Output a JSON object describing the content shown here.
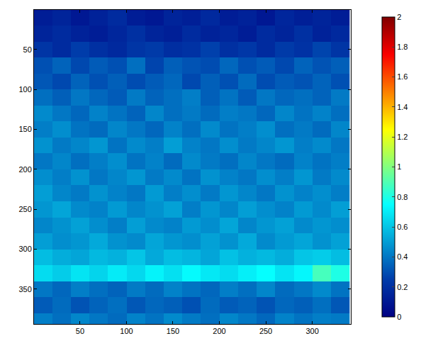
{
  "chart_data": {
    "type": "heatmap",
    "x": [
      10,
      30,
      50,
      70,
      90,
      110,
      130,
      150,
      170,
      190,
      210,
      230,
      250,
      270,
      290,
      310,
      330
    ],
    "y": [
      10,
      30,
      50,
      70,
      90,
      110,
      130,
      150,
      170,
      190,
      210,
      230,
      250,
      270,
      290,
      310,
      330,
      350,
      370,
      390
    ],
    "z": [
      [
        0.12,
        0.15,
        0.1,
        0.14,
        0.18,
        0.12,
        0.1,
        0.15,
        0.13,
        0.17,
        0.12,
        0.14,
        0.1,
        0.16,
        0.13,
        0.15,
        0.12
      ],
      [
        0.15,
        0.18,
        0.14,
        0.12,
        0.16,
        0.2,
        0.15,
        0.13,
        0.18,
        0.14,
        0.16,
        0.12,
        0.18,
        0.15,
        0.2,
        0.14,
        0.17
      ],
      [
        0.22,
        0.18,
        0.25,
        0.2,
        0.17,
        0.22,
        0.24,
        0.19,
        0.21,
        0.26,
        0.2,
        0.23,
        0.18,
        0.24,
        0.21,
        0.27,
        0.22
      ],
      [
        0.3,
        0.35,
        0.28,
        0.33,
        0.3,
        0.38,
        0.27,
        0.34,
        0.31,
        0.29,
        0.36,
        0.3,
        0.33,
        0.28,
        0.35,
        0.31,
        0.34
      ],
      [
        0.32,
        0.28,
        0.35,
        0.3,
        0.34,
        0.29,
        0.33,
        0.36,
        0.28,
        0.34,
        0.3,
        0.37,
        0.29,
        0.33,
        0.31,
        0.35,
        0.3
      ],
      [
        0.38,
        0.34,
        0.4,
        0.36,
        0.33,
        0.41,
        0.35,
        0.38,
        0.42,
        0.34,
        0.39,
        0.33,
        0.4,
        0.36,
        0.38,
        0.35,
        0.41
      ],
      [
        0.45,
        0.4,
        0.36,
        0.43,
        0.39,
        0.35,
        0.44,
        0.38,
        0.41,
        0.37,
        0.42,
        0.4,
        0.36,
        0.44,
        0.39,
        0.43,
        0.38
      ],
      [
        0.42,
        0.46,
        0.39,
        0.37,
        0.44,
        0.4,
        0.36,
        0.43,
        0.38,
        0.45,
        0.39,
        0.42,
        0.46,
        0.38,
        0.41,
        0.37,
        0.44
      ],
      [
        0.47,
        0.41,
        0.44,
        0.48,
        0.39,
        0.45,
        0.42,
        0.5,
        0.43,
        0.4,
        0.46,
        0.41,
        0.44,
        0.48,
        0.42,
        0.45,
        0.4
      ],
      [
        0.4,
        0.44,
        0.38,
        0.42,
        0.46,
        0.39,
        0.43,
        0.37,
        0.45,
        0.41,
        0.38,
        0.44,
        0.4,
        0.37,
        0.43,
        0.39,
        0.42
      ],
      [
        0.46,
        0.42,
        0.47,
        0.4,
        0.44,
        0.48,
        0.41,
        0.45,
        0.39,
        0.47,
        0.43,
        0.4,
        0.46,
        0.42,
        0.48,
        0.41,
        0.45
      ],
      [
        0.5,
        0.44,
        0.41,
        0.47,
        0.43,
        0.4,
        0.49,
        0.42,
        0.46,
        0.41,
        0.48,
        0.44,
        0.4,
        0.47,
        0.43,
        0.46,
        0.42
      ],
      [
        0.48,
        0.52,
        0.45,
        0.43,
        0.49,
        0.44,
        0.47,
        0.51,
        0.42,
        0.48,
        0.44,
        0.5,
        0.46,
        0.43,
        0.49,
        0.45,
        0.5
      ],
      [
        0.44,
        0.47,
        0.51,
        0.46,
        0.42,
        0.5,
        0.45,
        0.43,
        0.49,
        0.46,
        0.52,
        0.44,
        0.48,
        0.51,
        0.45,
        0.48,
        0.46
      ],
      [
        0.5,
        0.46,
        0.48,
        0.53,
        0.47,
        0.45,
        0.52,
        0.48,
        0.46,
        0.51,
        0.47,
        0.53,
        0.45,
        0.49,
        0.52,
        0.47,
        0.51
      ],
      [
        0.58,
        0.54,
        0.52,
        0.57,
        0.55,
        0.6,
        0.53,
        0.58,
        0.56,
        0.52,
        0.59,
        0.55,
        0.57,
        0.54,
        0.6,
        0.62,
        0.58
      ],
      [
        0.66,
        0.62,
        0.68,
        0.64,
        0.7,
        0.65,
        0.72,
        0.67,
        0.74,
        0.69,
        0.66,
        0.71,
        0.75,
        0.68,
        0.73,
        0.88,
        0.8
      ],
      [
        0.4,
        0.36,
        0.42,
        0.38,
        0.35,
        0.41,
        0.37,
        0.43,
        0.39,
        0.36,
        0.42,
        0.38,
        0.44,
        0.37,
        0.4,
        0.45,
        0.39
      ],
      [
        0.33,
        0.37,
        0.31,
        0.35,
        0.38,
        0.32,
        0.36,
        0.34,
        0.3,
        0.37,
        0.33,
        0.35,
        0.31,
        0.36,
        0.34,
        0.38,
        0.32
      ],
      [
        0.42,
        0.38,
        0.44,
        0.4,
        0.37,
        0.43,
        0.39,
        0.45,
        0.41,
        0.38,
        0.44,
        0.4,
        0.36,
        0.43,
        0.39,
        0.42,
        0.41
      ]
    ],
    "xlim": [
      0.5,
      341.5
    ],
    "ylim": [
      393.5,
      0.5
    ],
    "xticks": [
      50,
      100,
      150,
      200,
      250,
      300
    ],
    "yticks": [
      50,
      100,
      150,
      200,
      250,
      300,
      350
    ],
    "colorbar_range": [
      0,
      2
    ],
    "colorbar_ticks": [
      0,
      0.2,
      0.4,
      0.6,
      0.8,
      1,
      1.2,
      1.4,
      1.6,
      1.8,
      2
    ],
    "grid": false
  }
}
